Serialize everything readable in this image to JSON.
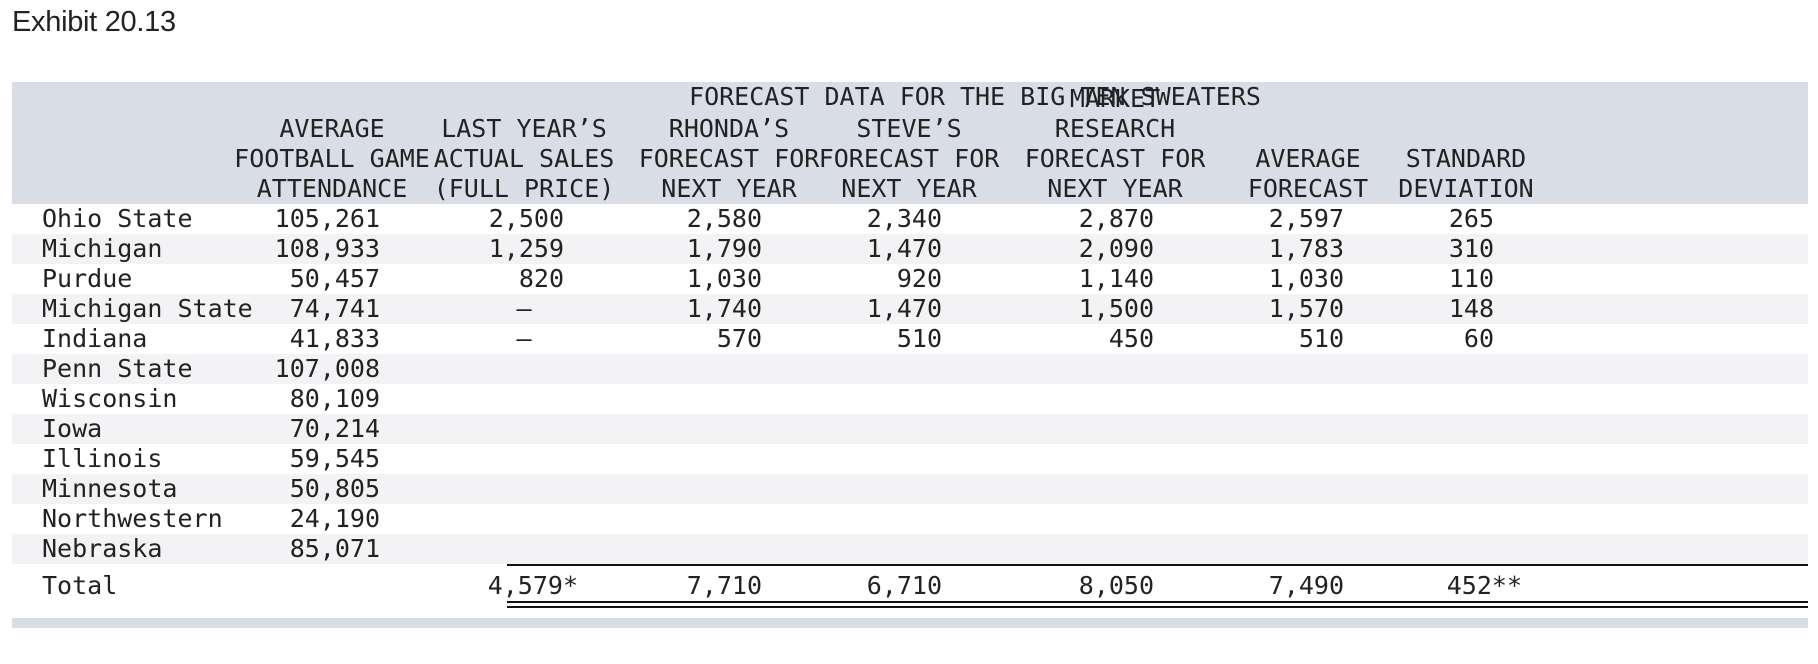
{
  "exhibit": {
    "title": "Exhibit 20.13"
  },
  "table": {
    "super_title": "FORECAST DATA FOR THE BIG TEN SWEATERS",
    "columns": [
      {
        "lines": [
          "AVERAGE",
          "FOOTBALL GAME",
          "ATTENDANCE"
        ]
      },
      {
        "lines": [
          "LAST YEAR’S",
          "ACTUAL SALES",
          "(FULL PRICE)"
        ]
      },
      {
        "lines": [
          "RHONDA’S",
          "FORECAST FOR",
          "NEXT YEAR"
        ]
      },
      {
        "lines": [
          "STEVE’S",
          "FORECAST FOR",
          "NEXT YEAR"
        ]
      },
      {
        "lines": [
          "MARKET RESEARCH",
          "FORECAST FOR",
          "NEXT YEAR"
        ]
      },
      {
        "lines": [
          "AVERAGE",
          "FORECAST"
        ]
      },
      {
        "lines": [
          "STANDARD",
          "DEVIATION"
        ]
      }
    ],
    "rows": [
      {
        "name": "Ohio State",
        "values": [
          "105,261",
          "2,500",
          "2,580",
          "2,340",
          "2,870",
          "2,597",
          "265"
        ]
      },
      {
        "name": "Michigan",
        "values": [
          "108,933",
          "1,259",
          "1,790",
          "1,470",
          "2,090",
          "1,783",
          "310"
        ]
      },
      {
        "name": "Purdue",
        "values": [
          "50,457",
          "820",
          "1,030",
          "920",
          "1,140",
          "1,030",
          "110"
        ]
      },
      {
        "name": "Michigan State",
        "values": [
          "74,741",
          "–",
          "1,740",
          "1,470",
          "1,500",
          "1,570",
          "148"
        ]
      },
      {
        "name": "Indiana",
        "values": [
          "41,833",
          "–",
          "570",
          "510",
          "450",
          "510",
          "60"
        ]
      },
      {
        "name": "Penn State",
        "values": [
          "107,008",
          "",
          "",
          "",
          "",
          "",
          ""
        ]
      },
      {
        "name": "Wisconsin",
        "values": [
          "80,109",
          "",
          "",
          "",
          "",
          "",
          ""
        ]
      },
      {
        "name": "Iowa",
        "values": [
          "70,214",
          "",
          "",
          "",
          "",
          "",
          ""
        ]
      },
      {
        "name": "Illinois",
        "values": [
          "59,545",
          "",
          "",
          "",
          "",
          "",
          ""
        ]
      },
      {
        "name": "Minnesota",
        "values": [
          "50,805",
          "",
          "",
          "",
          "",
          "",
          ""
        ]
      },
      {
        "name": "Northwestern",
        "values": [
          "24,190",
          "",
          "",
          "",
          "",
          "",
          ""
        ]
      },
      {
        "name": "Nebraska",
        "values": [
          "85,071",
          "",
          "",
          "",
          "",
          "",
          ""
        ]
      }
    ],
    "total": {
      "name": "Total",
      "values": [
        "",
        "4,579*",
        "7,710",
        "6,710",
        "8,050",
        "7,490",
        "452**"
      ]
    }
  }
}
